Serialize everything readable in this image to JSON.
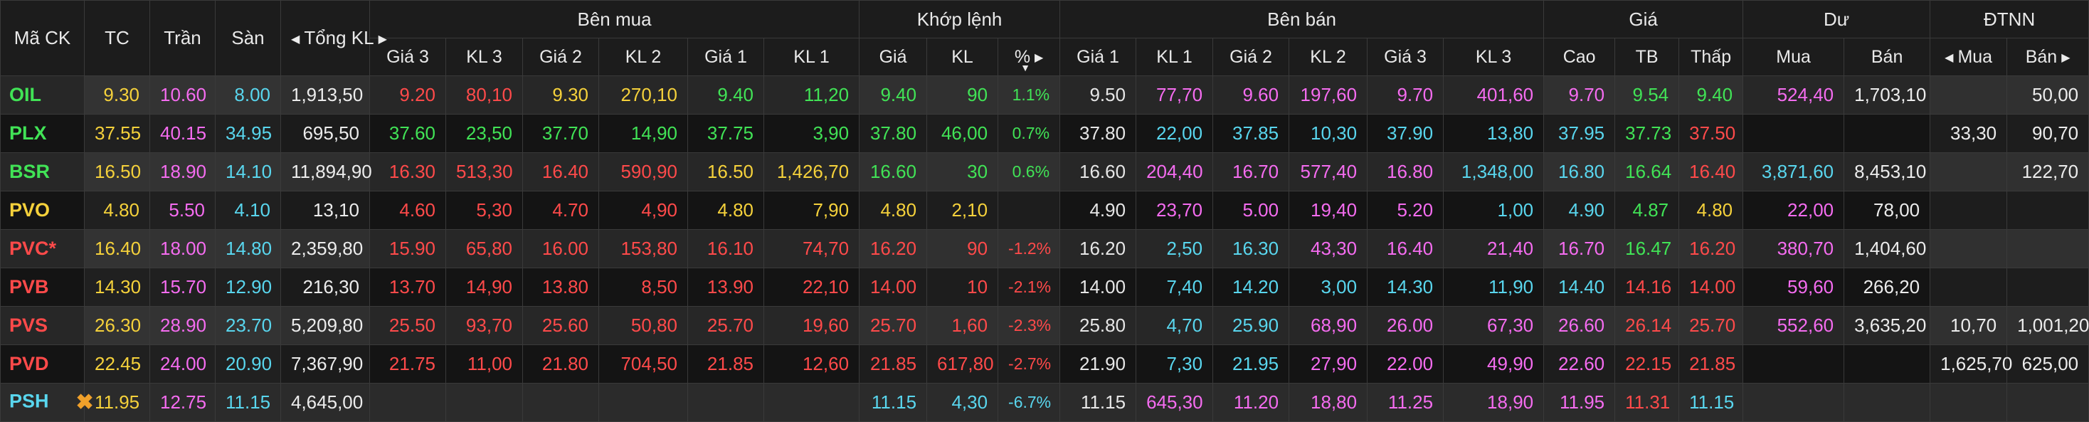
{
  "colors": {
    "ref": "#f5d13b",
    "up": "#41e356",
    "down": "#ff4a4a",
    "ceiling": "#f56cf0",
    "floor": "#59d6ee",
    "background": "#131313",
    "warning_icon": "#f0a02a"
  },
  "header": {
    "symbol": "Mã CK",
    "ref": "TC",
    "ceiling": "Trần",
    "floor": "Sàn",
    "total_vol": "Tổng KL",
    "bid_group": "Bên mua",
    "match_group": "Khớp lệnh",
    "ask_group": "Bên bán",
    "price_group": "Giá",
    "residual_group": "Dư",
    "foreign_group": "ĐTNN",
    "bid_cols": [
      "Giá 3",
      "KL 3",
      "Giá 2",
      "KL 2",
      "Giá 1",
      "KL 1"
    ],
    "match_cols": [
      "Giá",
      "KL",
      "%"
    ],
    "ask_cols": [
      "Giá 1",
      "KL 1",
      "Giá 2",
      "KL 2",
      "Giá 3",
      "KL 3"
    ],
    "price_cols": [
      "Cao",
      "TB",
      "Thấp"
    ],
    "residual_cols": [
      "Mua",
      "Bán"
    ],
    "foreign_cols": [
      "Mua",
      "Bán"
    ]
  },
  "rows": [
    {
      "sym": "OIL",
      "tc": "9.30",
      "tran": "10.60",
      "san": "8.00",
      "tong": "1,913,50",
      "bid": [
        "9.20",
        "80,10",
        "9.30",
        "270,10",
        "9.40",
        "11,20"
      ],
      "match": [
        "9.40",
        "90",
        "1.1%"
      ],
      "ask": [
        "9.50",
        "77,70",
        "9.60",
        "197,60",
        "9.70",
        "401,60"
      ],
      "hl": [
        "9.70",
        "9.54",
        "9.40"
      ],
      "du": [
        "524,40",
        "1,703,10"
      ],
      "nn": [
        "",
        "50,00"
      ]
    },
    {
      "sym": "PLX",
      "tc": "37.55",
      "tran": "40.15",
      "san": "34.95",
      "tong": "695,50",
      "bid": [
        "37.60",
        "23,50",
        "37.70",
        "14,90",
        "37.75",
        "3,90"
      ],
      "match": [
        "37.80",
        "46,00",
        "0.7%"
      ],
      "ask": [
        "37.80",
        "22,00",
        "37.85",
        "10,30",
        "37.90",
        "13,80"
      ],
      "hl": [
        "37.95",
        "37.73",
        "37.50"
      ],
      "du": [
        "",
        ""
      ],
      "nn": [
        "33,30",
        "90,70"
      ]
    },
    {
      "sym": "BSR",
      "tc": "16.50",
      "tran": "18.90",
      "san": "14.10",
      "tong": "11,894,90",
      "bid": [
        "16.30",
        "513,30",
        "16.40",
        "590,90",
        "16.50",
        "1,426,70"
      ],
      "match": [
        "16.60",
        "30",
        "0.6%"
      ],
      "ask": [
        "16.60",
        "204,40",
        "16.70",
        "577,40",
        "16.80",
        "1,348,00"
      ],
      "hl": [
        "16.80",
        "16.64",
        "16.40"
      ],
      "du": [
        "3,871,60",
        "8,453,10"
      ],
      "nn": [
        "",
        "122,70"
      ]
    },
    {
      "sym": "PVO",
      "tc": "4.80",
      "tran": "5.50",
      "san": "4.10",
      "tong": "13,10",
      "bid": [
        "4.60",
        "5,30",
        "4.70",
        "4,90",
        "4.80",
        "7,90"
      ],
      "match": [
        "4.80",
        "2,10",
        ""
      ],
      "ask": [
        "4.90",
        "23,70",
        "5.00",
        "19,40",
        "5.20",
        "1,00"
      ],
      "hl": [
        "4.90",
        "4.87",
        "4.80"
      ],
      "du": [
        "22,00",
        "78,00"
      ],
      "nn": [
        "",
        ""
      ]
    },
    {
      "sym": "PVC*",
      "tc": "16.40",
      "tran": "18.00",
      "san": "14.80",
      "tong": "2,359,80",
      "bid": [
        "15.90",
        "65,80",
        "16.00",
        "153,80",
        "16.10",
        "74,70"
      ],
      "match": [
        "16.20",
        "90",
        "-1.2%"
      ],
      "ask": [
        "16.20",
        "2,50",
        "16.30",
        "43,30",
        "16.40",
        "21,40"
      ],
      "hl": [
        "16.70",
        "16.47",
        "16.20"
      ],
      "du": [
        "380,70",
        "1,404,60"
      ],
      "nn": [
        "",
        ""
      ]
    },
    {
      "sym": "PVB",
      "tc": "14.30",
      "tran": "15.70",
      "san": "12.90",
      "tong": "216,30",
      "bid": [
        "13.70",
        "14,90",
        "13.80",
        "8,50",
        "13.90",
        "22,10"
      ],
      "match": [
        "14.00",
        "10",
        "-2.1%"
      ],
      "ask": [
        "14.00",
        "7,40",
        "14.20",
        "3,00",
        "14.30",
        "11,90"
      ],
      "hl": [
        "14.40",
        "14.16",
        "14.00"
      ],
      "du": [
        "59,60",
        "266,20"
      ],
      "nn": [
        "",
        ""
      ]
    },
    {
      "sym": "PVS",
      "tc": "26.30",
      "tran": "28.90",
      "san": "23.70",
      "tong": "5,209,80",
      "bid": [
        "25.50",
        "93,70",
        "25.60",
        "50,80",
        "25.70",
        "19,60"
      ],
      "match": [
        "25.70",
        "1,60",
        "-2.3%"
      ],
      "ask": [
        "25.80",
        "4,70",
        "25.90",
        "68,90",
        "26.00",
        "67,30"
      ],
      "hl": [
        "26.60",
        "26.14",
        "25.70"
      ],
      "du": [
        "552,60",
        "3,635,20"
      ],
      "nn": [
        "10,70",
        "1,001,20"
      ]
    },
    {
      "sym": "PVD",
      "tc": "22.45",
      "tran": "24.00",
      "san": "20.90",
      "tong": "7,367,90",
      "bid": [
        "21.75",
        "11,00",
        "21.80",
        "704,50",
        "21.85",
        "12,60"
      ],
      "match": [
        "21.85",
        "617,80",
        "-2.7%"
      ],
      "ask": [
        "21.90",
        "7,30",
        "21.95",
        "27,90",
        "22.00",
        "49,90"
      ],
      "hl": [
        "22.60",
        "22.15",
        "21.85"
      ],
      "du": [
        "",
        ""
      ],
      "nn": [
        "1,625,70",
        "625,00"
      ]
    },
    {
      "sym": "PSH",
      "tc": "11.95",
      "tran": "12.75",
      "san": "11.15",
      "tong": "4,645,00",
      "bid": [
        "",
        "",
        "",
        "",
        "",
        ""
      ],
      "match": [
        "11.15",
        "4,30",
        "-6.7%"
      ],
      "ask": [
        "11.15",
        "645,30",
        "11.20",
        "18,80",
        "11.25",
        "18,90"
      ],
      "hl": [
        "11.95",
        "11.31",
        "11.15"
      ],
      "du": [
        "",
        ""
      ],
      "nn": [
        "",
        ""
      ],
      "icon": "warning-x-icon"
    }
  ]
}
